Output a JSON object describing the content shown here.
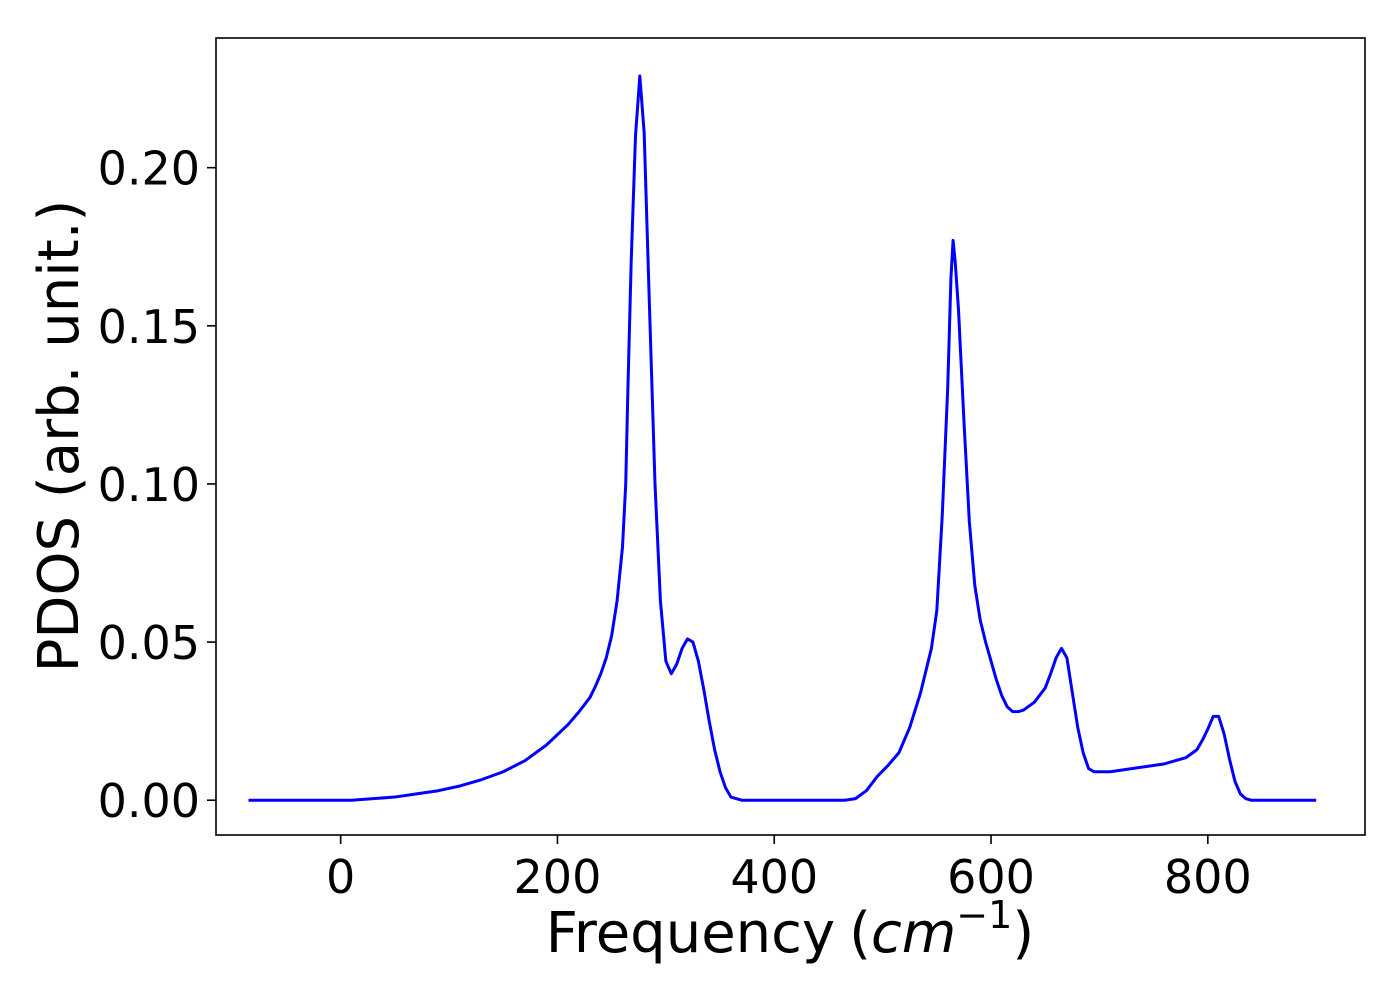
{
  "chart_data": {
    "type": "line",
    "title": "",
    "xlabel": "Frequency",
    "xlabel_unit_prefix": "(",
    "xlabel_unit_base": "cm",
    "xlabel_unit_exp": "−1",
    "xlabel_unit_suffix": ")",
    "ylabel": "PDOS (arb. unit.)",
    "xlim": [
      -115,
      945
    ],
    "ylim": [
      -0.011,
      0.241
    ],
    "xticks": [
      0,
      200,
      400,
      600,
      800
    ],
    "xtick_labels": [
      "0",
      "200",
      "400",
      "600",
      "800"
    ],
    "yticks": [
      0.0,
      0.05,
      0.1,
      0.15,
      0.2
    ],
    "ytick_labels": [
      "0.00",
      "0.05",
      "0.10",
      "0.15",
      "0.20"
    ],
    "grid": false,
    "legend": false,
    "line_color": "#0000ff",
    "series": [
      {
        "x": [
          -85,
          -40,
          0,
          10,
          30,
          50,
          70,
          90,
          110,
          130,
          150,
          170,
          190,
          210,
          220,
          230,
          235,
          240,
          245,
          250,
          255,
          260,
          263,
          265,
          268,
          272,
          276,
          280,
          285,
          290,
          295,
          300,
          305,
          310,
          315,
          320,
          325,
          330,
          335,
          340,
          345,
          350,
          355,
          360,
          370,
          400,
          440,
          465,
          475,
          485,
          495,
          505,
          515,
          525,
          535,
          540,
          545,
          550,
          555,
          560,
          563,
          565,
          567,
          570,
          575,
          580,
          585,
          590,
          595,
          600,
          605,
          610,
          615,
          620,
          625,
          630,
          640,
          650,
          655,
          660,
          665,
          670,
          675,
          680,
          685,
          690,
          695,
          700,
          710,
          740,
          760,
          780,
          790,
          795,
          800,
          805,
          810,
          815,
          820,
          825,
          830,
          835,
          840,
          860,
          900
        ],
        "y": [
          0.0,
          0.0,
          0.0,
          0.0,
          0.0005,
          0.001,
          0.002,
          0.003,
          0.0045,
          0.0065,
          0.009,
          0.0125,
          0.0175,
          0.024,
          0.028,
          0.0325,
          0.036,
          0.04,
          0.045,
          0.052,
          0.063,
          0.08,
          0.1,
          0.13,
          0.17,
          0.21,
          0.229,
          0.211,
          0.155,
          0.1,
          0.063,
          0.044,
          0.04,
          0.043,
          0.048,
          0.051,
          0.05,
          0.044,
          0.035,
          0.025,
          0.016,
          0.009,
          0.004,
          0.001,
          0.0,
          0.0,
          0.0,
          0.0,
          0.0005,
          0.003,
          0.0075,
          0.011,
          0.015,
          0.023,
          0.034,
          0.041,
          0.048,
          0.06,
          0.09,
          0.13,
          0.165,
          0.177,
          0.17,
          0.155,
          0.12,
          0.088,
          0.068,
          0.057,
          0.05,
          0.044,
          0.038,
          0.033,
          0.0295,
          0.028,
          0.028,
          0.0285,
          0.031,
          0.0355,
          0.04,
          0.045,
          0.048,
          0.045,
          0.034,
          0.023,
          0.015,
          0.01,
          0.009,
          0.009,
          0.009,
          0.0105,
          0.0115,
          0.0135,
          0.016,
          0.019,
          0.0225,
          0.0265,
          0.0265,
          0.021,
          0.013,
          0.006,
          0.002,
          0.0005,
          0.0,
          0.0,
          0.0
        ]
      }
    ]
  }
}
